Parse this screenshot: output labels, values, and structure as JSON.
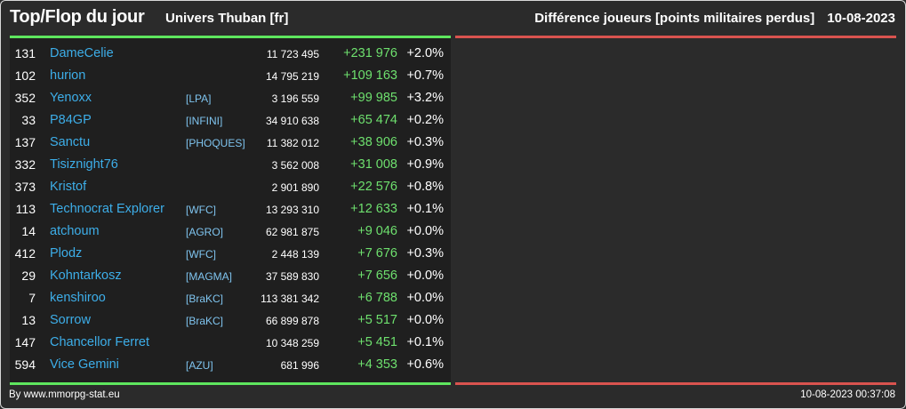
{
  "header": {
    "title": "Top/Flop du jour",
    "universe": "Univers Thuban [fr]",
    "ranking": "Différence joueurs [points militaires perdus]",
    "date": "10-08-2023"
  },
  "colors": {
    "top_bar": "#5ee65e",
    "flop_bar": "#d9534f",
    "player_name": "#3daee9",
    "positive_diff": "#6ee06e"
  },
  "players": [
    {
      "rank": "131",
      "name": "DameCelie",
      "alliance": "",
      "points": "11 723 495",
      "diff": "+231 976",
      "pct": "+2.0%"
    },
    {
      "rank": "102",
      "name": "hurion",
      "alliance": "",
      "points": "14 795 219",
      "diff": "+109 163",
      "pct": "+0.7%"
    },
    {
      "rank": "352",
      "name": "Yenoxx",
      "alliance": "[LPA]",
      "points": "3 196 559",
      "diff": "+99 985",
      "pct": "+3.2%"
    },
    {
      "rank": "33",
      "name": "P84GP",
      "alliance": "[INFINI]",
      "points": "34 910 638",
      "diff": "+65 474",
      "pct": "+0.2%"
    },
    {
      "rank": "137",
      "name": "Sanctu",
      "alliance": "[PHOQUES]",
      "points": "11 382 012",
      "diff": "+38 906",
      "pct": "+0.3%"
    },
    {
      "rank": "332",
      "name": "Tisiznight76",
      "alliance": "",
      "points": "3 562 008",
      "diff": "+31 008",
      "pct": "+0.9%"
    },
    {
      "rank": "373",
      "name": "Kristof",
      "alliance": "",
      "points": "2 901 890",
      "diff": "+22 576",
      "pct": "+0.8%"
    },
    {
      "rank": "113",
      "name": "Technocrat Explorer",
      "alliance": "[WFC]",
      "points": "13 293 310",
      "diff": "+12 633",
      "pct": "+0.1%"
    },
    {
      "rank": "14",
      "name": "atchoum",
      "alliance": "[AGRO]",
      "points": "62 981 875",
      "diff": "+9 046",
      "pct": "+0.0%"
    },
    {
      "rank": "412",
      "name": "Plodz",
      "alliance": "[WFC]",
      "points": "2 448 139",
      "diff": "+7 676",
      "pct": "+0.3%"
    },
    {
      "rank": "29",
      "name": "Kohntarkosz",
      "alliance": "[MAGMA]",
      "points": "37 589 830",
      "diff": "+7 656",
      "pct": "+0.0%"
    },
    {
      "rank": "7",
      "name": "kenshiroo",
      "alliance": "[BraKC]",
      "points": "113 381 342",
      "diff": "+6 788",
      "pct": "+0.0%"
    },
    {
      "rank": "13",
      "name": "Sorrow",
      "alliance": "[BraKC]",
      "points": "66 899 878",
      "diff": "+5 517",
      "pct": "+0.0%"
    },
    {
      "rank": "147",
      "name": "Chancellor Ferret",
      "alliance": "",
      "points": "10 348 259",
      "diff": "+5 451",
      "pct": "+0.1%"
    },
    {
      "rank": "594",
      "name": "Vice Gemini",
      "alliance": "[AZU]",
      "points": "681 996",
      "diff": "+4 353",
      "pct": "+0.6%"
    }
  ],
  "footer": {
    "credit": "By www.mmorpg-stat.eu",
    "timestamp": "10-08-2023 00:37:08"
  }
}
